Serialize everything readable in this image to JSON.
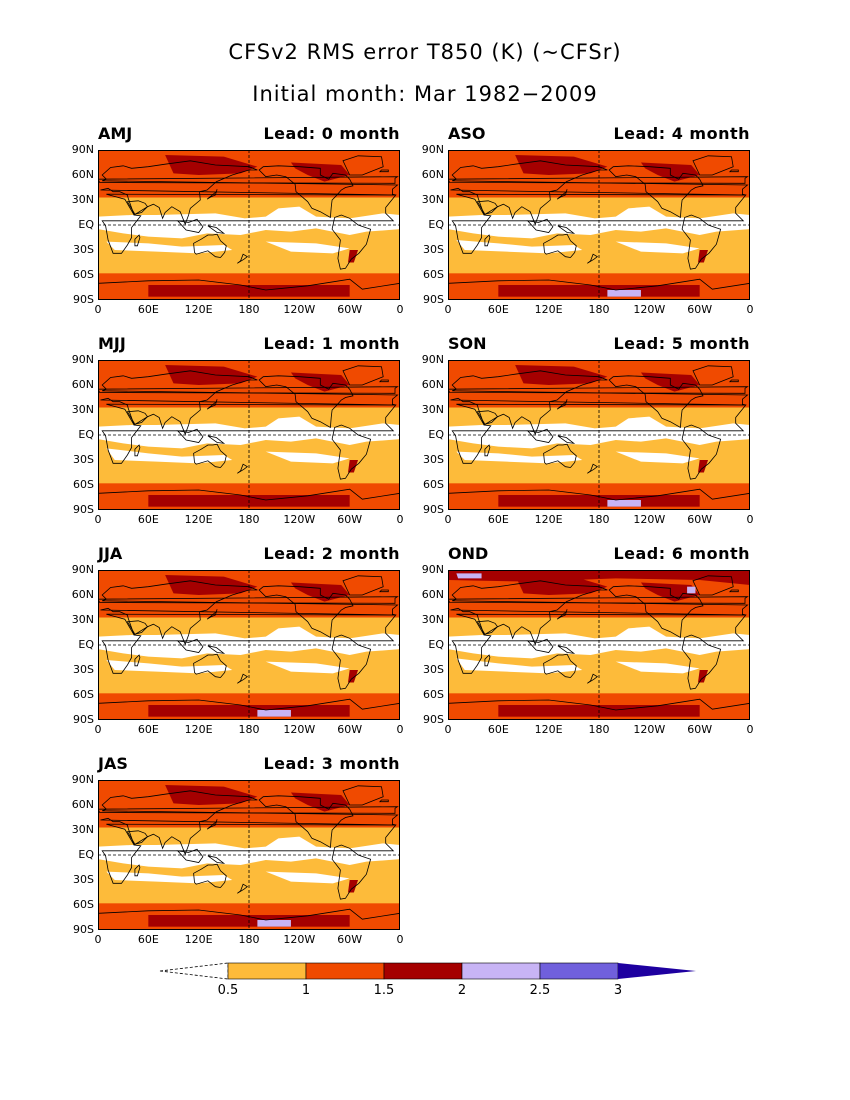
{
  "title_line1": "CFSv2 RMS error T850 (K) (~CFSr)",
  "title_line2": "Initial month: Mar 1982−2009",
  "panels": [
    {
      "season": "AMJ",
      "lead": "Lead: 0 month",
      "lead_months": 0
    },
    {
      "season": "ASO",
      "lead": "Lead: 4 month",
      "lead_months": 4
    },
    {
      "season": "MJJ",
      "lead": "Lead: 1 month",
      "lead_months": 1
    },
    {
      "season": "SON",
      "lead": "Lead: 5 month",
      "lead_months": 5
    },
    {
      "season": "JJA",
      "lead": "Lead: 2 month",
      "lead_months": 2
    },
    {
      "season": "OND",
      "lead": "Lead: 6 month",
      "lead_months": 6
    },
    {
      "season": "JAS",
      "lead": "Lead: 3 month",
      "lead_months": 3
    }
  ],
  "lat_labels": [
    "90N",
    "60N",
    "30N",
    "EQ",
    "30S",
    "60S",
    "90S"
  ],
  "lon_labels": [
    "0",
    "60E",
    "120E",
    "180",
    "120W",
    "60W",
    "0"
  ],
  "colorbar": {
    "levels": [
      "0.5",
      "1",
      "1.5",
      "2",
      "2.5",
      "3"
    ],
    "colors": [
      "#fdbb3a",
      "#f04a00",
      "#a50000",
      "#c8b4f5",
      "#7060dc",
      "#1e00a0"
    ]
  },
  "colors": {
    "white_bin": "#ffffff",
    "bin_0_5_1": "#fdbb3a",
    "bin_1_1_5": "#f04a00",
    "bin_1_5_2": "#a50000",
    "bin_2_2_5": "#c8b4f5",
    "coastline": "#000000"
  }
}
